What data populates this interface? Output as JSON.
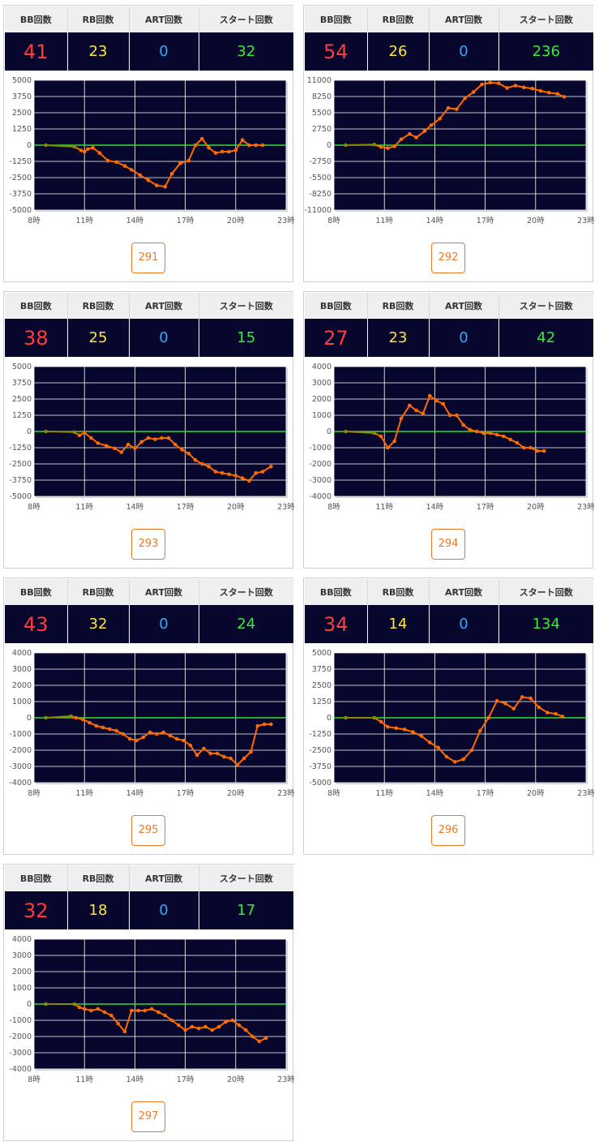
{
  "headers": {
    "bb": "BB回数",
    "rb": "RB回数",
    "art": "ART回数",
    "start": "スタート回数"
  },
  "colors": {
    "bb": "#ff3b3b",
    "rb": "#ffe733",
    "art": "#33aaff",
    "start": "#33ee33",
    "plot_bg": "#07072e",
    "line": "#ff6a00",
    "zero_line": "#33dd33",
    "pre_line": "#8a8a00"
  },
  "machines": [
    {
      "number": "291",
      "bb": "41",
      "rb": "23",
      "art": "0",
      "start": "32",
      "chart_data": {
        "type": "line",
        "ylim": [
          -5000,
          5000
        ],
        "yticks": [
          5000,
          3750,
          2500,
          1250,
          0,
          -1250,
          -2500,
          -3750,
          -5000
        ],
        "xticks": [
          "8時",
          "11時",
          "14時",
          "17時",
          "20時",
          "23時"
        ],
        "xlim": [
          8,
          23
        ],
        "x": [
          8.7,
          10.4,
          10.8,
          11.0,
          11.2,
          11.5,
          11.9,
          12.4,
          12.9,
          13.4,
          13.8,
          14.3,
          14.8,
          15.3,
          15.8,
          16.2,
          16.7,
          17.2,
          17.6,
          18.0,
          18.4,
          18.8,
          19.2,
          19.6,
          20.0,
          20.4,
          20.8,
          21.2,
          21.6
        ],
        "y": [
          0,
          -120,
          -400,
          -500,
          -300,
          -200,
          -600,
          -1200,
          -1300,
          -1600,
          -1900,
          -2300,
          -2700,
          -3100,
          -3200,
          -2200,
          -1400,
          -1200,
          0,
          500,
          -200,
          -600,
          -500,
          -500,
          -400,
          400,
          0,
          0,
          0
        ]
      }
    },
    {
      "number": "292",
      "bb": "54",
      "rb": "26",
      "art": "0",
      "start": "236",
      "chart_data": {
        "type": "line",
        "ylim": [
          -11000,
          11000
        ],
        "yticks": [
          11000,
          8250,
          5500,
          2750,
          0,
          -2750,
          -5500,
          -8250,
          -11000
        ],
        "xticks": [
          "8時",
          "11時",
          "14時",
          "17時",
          "20時",
          "23時"
        ],
        "xlim": [
          8,
          23
        ],
        "x": [
          8.7,
          10.4,
          10.8,
          11.2,
          11.6,
          12.0,
          12.5,
          12.9,
          13.4,
          13.8,
          14.3,
          14.8,
          15.3,
          15.8,
          16.3,
          16.8,
          17.3,
          17.8,
          18.3,
          18.8,
          19.3,
          19.8,
          20.3,
          20.8,
          21.3,
          21.7
        ],
        "y": [
          0,
          100,
          -300,
          -500,
          -200,
          1000,
          1900,
          1300,
          2400,
          3400,
          4500,
          6300,
          6100,
          8000,
          9000,
          10300,
          10600,
          10500,
          9700,
          10100,
          9800,
          9600,
          9200,
          8900,
          8700,
          8200
        ]
      }
    },
    {
      "number": "293",
      "bb": "38",
      "rb": "25",
      "art": "0",
      "start": "15",
      "chart_data": {
        "type": "line",
        "ylim": [
          -5000,
          5000
        ],
        "yticks": [
          5000,
          3750,
          2500,
          1250,
          0,
          -1250,
          -2500,
          -3750,
          -5000
        ],
        "xticks": [
          "8時",
          "11時",
          "14時",
          "17時",
          "20時",
          "23時"
        ],
        "xlim": [
          8,
          23
        ],
        "x": [
          8.7,
          10.4,
          10.7,
          11.0,
          11.4,
          11.8,
          12.3,
          12.8,
          13.2,
          13.6,
          14.0,
          14.4,
          14.8,
          15.2,
          15.6,
          16.0,
          16.4,
          16.8,
          17.2,
          17.6,
          18.0,
          18.4,
          18.8,
          19.2,
          19.6,
          20.0,
          20.4,
          20.8,
          21.2,
          21.6,
          22.1
        ],
        "y": [
          0,
          -50,
          -300,
          -100,
          -500,
          -900,
          -1100,
          -1300,
          -1600,
          -1000,
          -1300,
          -800,
          -500,
          -600,
          -500,
          -500,
          -1000,
          -1400,
          -1700,
          -2200,
          -2500,
          -2700,
          -3100,
          -3200,
          -3300,
          -3400,
          -3600,
          -3800,
          -3200,
          -3100,
          -2700
        ]
      }
    },
    {
      "number": "294",
      "bb": "27",
      "rb": "23",
      "art": "0",
      "start": "42",
      "chart_data": {
        "type": "line",
        "ylim": [
          -4000,
          4000
        ],
        "yticks": [
          4000,
          3000,
          2000,
          1000,
          0,
          -1000,
          -2000,
          -3000,
          -4000
        ],
        "xticks": [
          "8時",
          "11時",
          "14時",
          "17時",
          "20時",
          "23時"
        ],
        "xlim": [
          8,
          23
        ],
        "x": [
          8.7,
          10.4,
          10.8,
          11.2,
          11.6,
          12.0,
          12.5,
          12.9,
          13.3,
          13.7,
          14.1,
          14.5,
          14.9,
          15.3,
          15.7,
          16.1,
          16.5,
          16.9,
          17.3,
          17.7,
          18.1,
          18.5,
          18.9,
          19.3,
          19.7,
          20.1,
          20.5
        ],
        "y": [
          0,
          -100,
          -300,
          -1000,
          -600,
          800,
          1600,
          1300,
          1100,
          2200,
          1900,
          1700,
          1000,
          1000,
          400,
          100,
          0,
          -100,
          -100,
          -200,
          -300,
          -500,
          -700,
          -1000,
          -1000,
          -1200,
          -1200
        ]
      }
    },
    {
      "number": "295",
      "bb": "43",
      "rb": "32",
      "art": "0",
      "start": "24",
      "chart_data": {
        "type": "line",
        "ylim": [
          -4000,
          4000
        ],
        "yticks": [
          4000,
          3000,
          2000,
          1000,
          0,
          -1000,
          -2000,
          -3000,
          -4000
        ],
        "xticks": [
          "8時",
          "11時",
          "14時",
          "17時",
          "20時",
          "23時"
        ],
        "xlim": [
          8,
          23
        ],
        "x": [
          8.7,
          10.2,
          10.5,
          10.9,
          11.3,
          11.7,
          12.1,
          12.5,
          12.9,
          13.3,
          13.7,
          14.1,
          14.5,
          14.9,
          15.3,
          15.7,
          16.1,
          16.5,
          16.9,
          17.3,
          17.7,
          18.1,
          18.5,
          18.9,
          19.3,
          19.7,
          20.1,
          20.5,
          20.9,
          21.3,
          21.7,
          22.1
        ],
        "y": [
          0,
          100,
          0,
          -100,
          -300,
          -500,
          -600,
          -700,
          -800,
          -1000,
          -1300,
          -1400,
          -1200,
          -900,
          -1000,
          -900,
          -1100,
          -1300,
          -1400,
          -1700,
          -2300,
          -1900,
          -2200,
          -2200,
          -2400,
          -2500,
          -2900,
          -2500,
          -2100,
          -500,
          -400,
          -400
        ]
      }
    },
    {
      "number": "296",
      "bb": "34",
      "rb": "14",
      "art": "0",
      "start": "134",
      "chart_data": {
        "type": "line",
        "ylim": [
          -5000,
          5000
        ],
        "yticks": [
          5000,
          3750,
          2500,
          1250,
          0,
          -1250,
          -2500,
          -3750,
          -5000
        ],
        "xticks": [
          "8時",
          "11時",
          "14時",
          "17時",
          "20時",
          "23時"
        ],
        "xlim": [
          8,
          23
        ],
        "x": [
          8.7,
          10.4,
          10.8,
          11.2,
          11.7,
          12.2,
          12.7,
          13.2,
          13.7,
          14.2,
          14.7,
          15.2,
          15.7,
          16.2,
          16.7,
          17.2,
          17.7,
          18.2,
          18.7,
          19.2,
          19.7,
          20.2,
          20.7,
          21.2,
          21.6
        ],
        "y": [
          0,
          0,
          -300,
          -700,
          -800,
          -900,
          -1100,
          -1400,
          -1900,
          -2300,
          -3000,
          -3400,
          -3200,
          -2500,
          -1000,
          0,
          1300,
          1100,
          700,
          1600,
          1500,
          800,
          400,
          300,
          100
        ]
      }
    },
    {
      "number": "297",
      "bb": "32",
      "rb": "18",
      "art": "0",
      "start": "17",
      "chart_data": {
        "type": "line",
        "ylim": [
          -4000,
          4000
        ],
        "yticks": [
          4000,
          3000,
          2000,
          1000,
          0,
          -1000,
          -2000,
          -3000,
          -4000
        ],
        "xticks": [
          "8時",
          "11時",
          "14時",
          "17時",
          "20時",
          "23時"
        ],
        "xlim": [
          8,
          23
        ],
        "x": [
          8.7,
          10.4,
          10.7,
          11.0,
          11.4,
          11.8,
          12.2,
          12.6,
          13.0,
          13.4,
          13.8,
          14.2,
          14.6,
          15.0,
          15.4,
          15.8,
          16.2,
          16.6,
          17.0,
          17.4,
          17.8,
          18.2,
          18.6,
          19.0,
          19.4,
          19.8,
          20.2,
          20.6,
          21.0,
          21.4,
          21.8
        ],
        "y": [
          0,
          0,
          -200,
          -300,
          -400,
          -300,
          -500,
          -700,
          -1200,
          -1700,
          -400,
          -400,
          -400,
          -300,
          -500,
          -700,
          -1000,
          -1300,
          -1600,
          -1400,
          -1500,
          -1400,
          -1600,
          -1400,
          -1100,
          -1000,
          -1300,
          -1600,
          -2000,
          -2300,
          -2100
        ]
      }
    }
  ]
}
